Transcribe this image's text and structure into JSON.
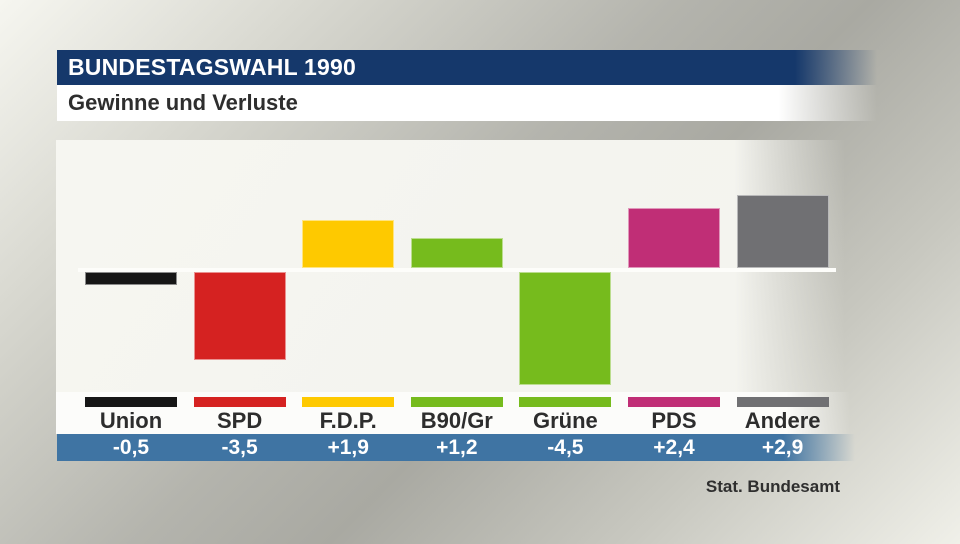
{
  "header": {
    "title": "BUNDESTAGSWAHL 1990",
    "subtitle": "Gewinne und Verluste"
  },
  "source": "Stat. Bundesamt",
  "colors": {
    "header_bg": "#15386b",
    "header_text": "#ffffff",
    "subtitle_bg": "#ffffff",
    "subtitle_text": "#2e2e2e",
    "value_band_bg": "#3f74a3",
    "value_text": "#ffffff",
    "panel_bg": "#f6f6f1",
    "zero_line": "#fdfdfa",
    "category_text": "#2d2d2d"
  },
  "chart_data": {
    "type": "bar",
    "title": "Gewinne und Verluste",
    "subtitle_context": "Bundestagswahl 1990, Veränderung in Prozentpunkten",
    "categories": [
      "Union",
      "SPD",
      "F.D.P.",
      "B90/Gr",
      "Grüne",
      "PDS",
      "Andere"
    ],
    "values": [
      -0.5,
      -3.5,
      1.9,
      1.2,
      -4.5,
      2.4,
      2.9
    ],
    "value_labels": [
      "-0,5",
      "-3,5",
      "+1,9",
      "+1,2",
      "-4,5",
      "+2,4",
      "+2,9"
    ],
    "bar_colors": [
      "#161616",
      "#d52221",
      "#fec900",
      "#76bb1d",
      "#76bb1d",
      "#c02e76",
      "#707073"
    ],
    "baseline": 0,
    "ylim": [
      -4.7,
      3.1
    ],
    "grid": false,
    "legend": "color-swatches-below-bars",
    "xlabel": "",
    "ylabel": ""
  }
}
